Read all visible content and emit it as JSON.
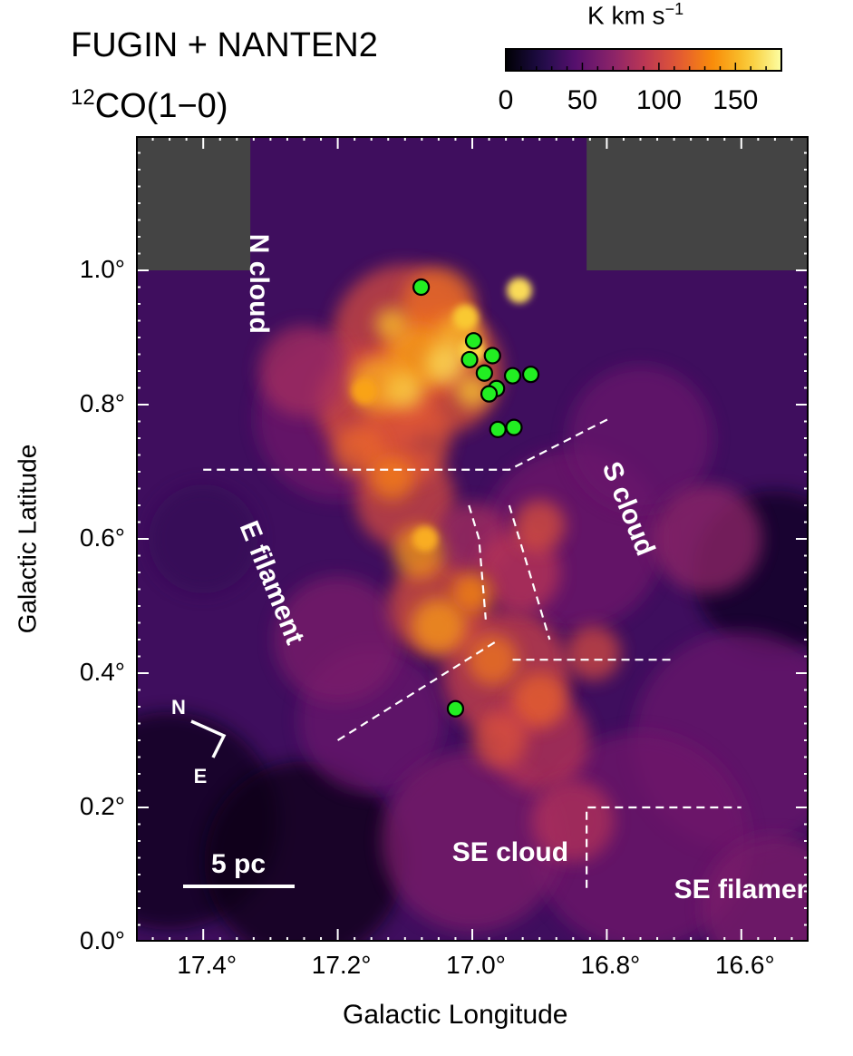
{
  "chart_data": {
    "type": "heatmap",
    "title_line1": "FUGIN + NANTEN2",
    "title_line2_sup": "12",
    "title_line2_main": "CO(1−0)",
    "xlabel": "Galactic Longitude",
    "ylabel": "Galactic Latitude",
    "xlim": [
      17.5,
      16.5
    ],
    "ylim": [
      0.0,
      1.2
    ],
    "x_ticks": [
      "17.4°",
      "17.2°",
      "17.0°",
      "16.8°",
      "16.6°"
    ],
    "y_ticks": [
      "0.0°",
      "0.2°",
      "0.4°",
      "0.6°",
      "0.8°",
      "1.0°"
    ],
    "colorbar": {
      "unit_main": "K km s",
      "unit_sup": "−1",
      "ticks": [
        "0",
        "50",
        "100",
        "150"
      ],
      "range": [
        0,
        180
      ],
      "colormap": "inferno"
    },
    "regions": [
      {
        "label": "N cloud",
        "l": 17.33,
        "b": 0.98,
        "rotation": 90
      },
      {
        "label": "S cloud",
        "l": 16.78,
        "b": 0.64,
        "rotation": 68
      },
      {
        "label": "E filament",
        "l": 17.31,
        "b": 0.53,
        "rotation": 68
      },
      {
        "label": "SE cloud",
        "l": 17.03,
        "b": 0.12,
        "rotation": 0
      },
      {
        "label": "SE filament",
        "l": 16.7,
        "b": 0.065,
        "rotation": 0
      }
    ],
    "sources": [
      {
        "l": 17.076,
        "b": 0.975
      },
      {
        "l": 16.998,
        "b": 0.895
      },
      {
        "l": 17.004,
        "b": 0.867
      },
      {
        "l": 16.97,
        "b": 0.873
      },
      {
        "l": 16.982,
        "b": 0.847
      },
      {
        "l": 16.94,
        "b": 0.843
      },
      {
        "l": 16.913,
        "b": 0.845
      },
      {
        "l": 16.964,
        "b": 0.824
      },
      {
        "l": 16.975,
        "b": 0.816
      },
      {
        "l": 16.962,
        "b": 0.763
      },
      {
        "l": 16.938,
        "b": 0.766
      },
      {
        "l": 17.025,
        "b": 0.347
      }
    ],
    "boundaries": [
      [
        [
          17.4,
          0.703
        ],
        [
          16.945,
          0.703
        ],
        [
          16.795,
          0.78
        ]
      ],
      [
        [
          17.005,
          0.65
        ],
        [
          16.99,
          0.6
        ],
        [
          16.98,
          0.48
        ]
      ],
      [
        [
          16.945,
          0.65
        ],
        [
          16.885,
          0.45
        ]
      ],
      [
        [
          16.94,
          0.42
        ],
        [
          16.7,
          0.42
        ]
      ],
      [
        [
          17.2,
          0.3
        ],
        [
          16.96,
          0.45
        ]
      ],
      [
        [
          16.83,
          0.08
        ],
        [
          16.83,
          0.2
        ],
        [
          16.6,
          0.2
        ]
      ]
    ],
    "compass": {
      "north": "N",
      "east": "E"
    },
    "scalebar_label": "5 pc",
    "gray_no_data_regions": [
      {
        "l_range": [
          17.5,
          17.33
        ],
        "b_range": [
          1.0,
          1.2
        ]
      },
      {
        "l_range": [
          16.83,
          16.5
        ],
        "b_range": [
          1.0,
          1.2
        ]
      }
    ],
    "source_marker_color": "#22ee22",
    "boundary_color": "#ffffff",
    "no_data_color": "#444444"
  }
}
